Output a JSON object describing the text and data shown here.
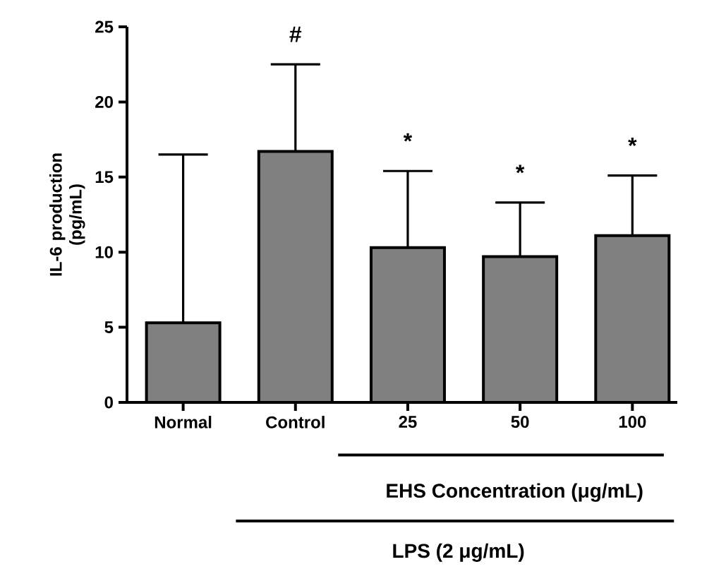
{
  "chart_data": {
    "type": "bar",
    "categories": [
      "Normal",
      "Control",
      "25",
      "50",
      "100"
    ],
    "values": [
      5.3,
      16.7,
      10.3,
      9.7,
      11.1
    ],
    "errors": [
      [
        5.3,
        16.5
      ],
      [
        16.7,
        22.5
      ],
      [
        10.3,
        15.4
      ],
      [
        9.7,
        13.3
      ],
      [
        11.1,
        15.1
      ]
    ],
    "color": "#808080",
    "ylabel": "IL-6 production (pg/mL)",
    "xlabel": "EHS Concentration (μg/mL)",
    "ylim": [
      0,
      25
    ],
    "yticks": [
      0,
      5,
      10,
      15,
      20,
      25
    ],
    "grid": false,
    "annotations": [
      "#",
      "*",
      "*",
      "*",
      "LPS (2 μg/mL)"
    ]
  }
}
